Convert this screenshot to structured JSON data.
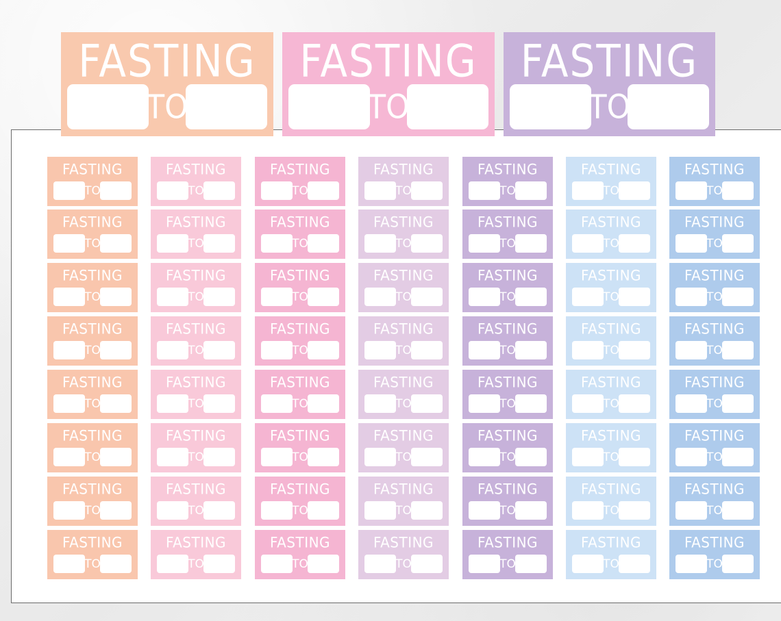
{
  "title_text": "FASTING",
  "to_text": "TO",
  "large_stickers": [
    {
      "color": "#f9c9ae"
    },
    {
      "color": "#f6b7d4"
    },
    {
      "color": "#c7b2da"
    }
  ],
  "columns": [
    {
      "color": "#f9c6ad"
    },
    {
      "color": "#f9c9d9"
    },
    {
      "color": "#f5b5d2"
    },
    {
      "color": "#e3cce4"
    },
    {
      "color": "#c7b2da"
    },
    {
      "color": "#cde2f6"
    },
    {
      "color": "#aecbec"
    }
  ],
  "rows": 8
}
